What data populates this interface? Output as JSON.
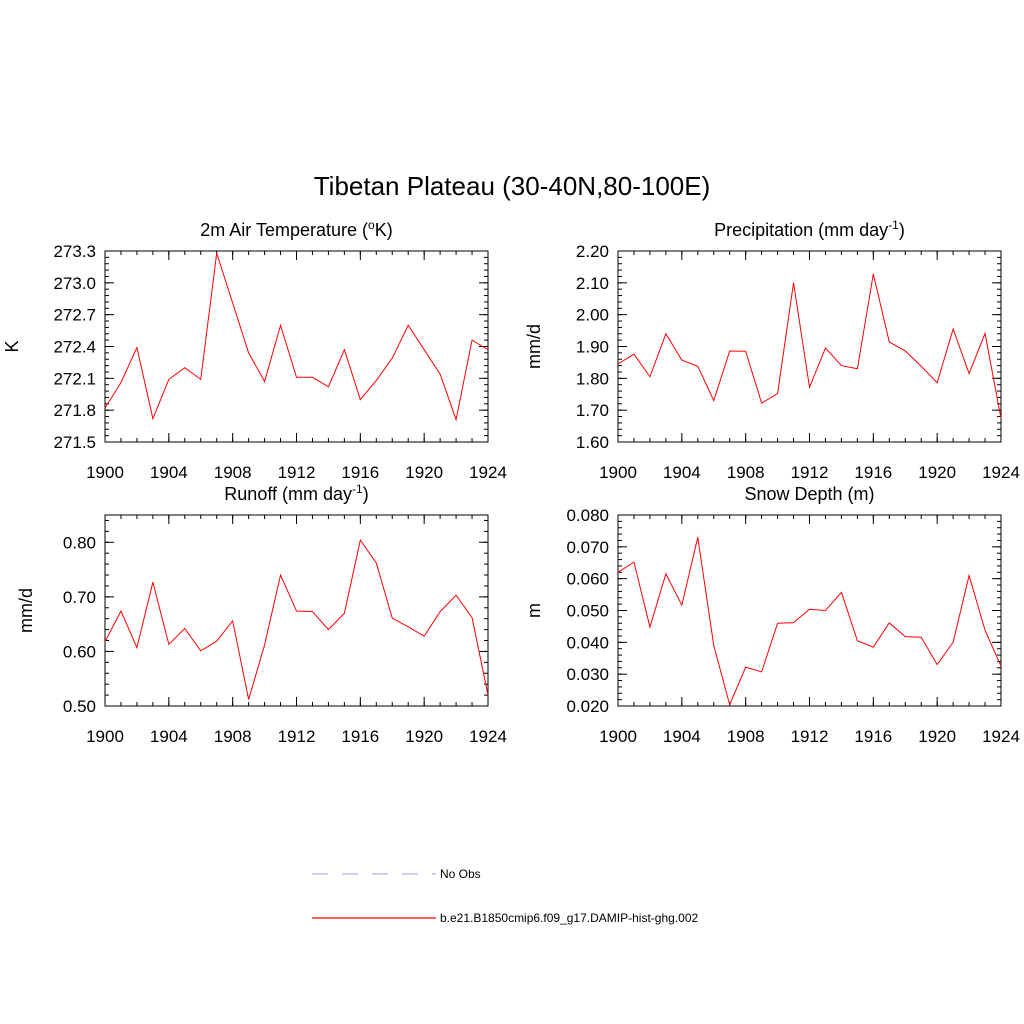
{
  "figure": {
    "title": "Tibetan Plateau (30-40N,80-100E)"
  },
  "chart_data": [
    {
      "type": "line",
      "title": "2m Air Temperature (",
      "title_sup": "o",
      "title_end": "K)",
      "xlabel": "",
      "ylabel": "K",
      "xlim": [
        1900,
        1924
      ],
      "ylim": [
        271.5,
        273.3
      ],
      "xticks": [
        1900,
        1904,
        1908,
        1912,
        1916,
        1920,
        1924
      ],
      "xtick_labels": [
        "1900",
        "1904",
        "1908",
        "1912",
        "1916",
        "1920",
        "1924"
      ],
      "yticks": [
        271.5,
        271.8,
        272.1,
        272.4,
        272.7,
        273.0,
        273.3
      ],
      "ytick_labels": [
        "271.5",
        "271.8",
        "272.1",
        "272.4",
        "272.7",
        "273.0",
        "273.3"
      ],
      "x": [
        1900,
        1901,
        1902,
        1903,
        1904,
        1905,
        1906,
        1907,
        1908,
        1909,
        1910,
        1911,
        1912,
        1913,
        1914,
        1915,
        1916,
        1917,
        1918,
        1919,
        1920,
        1921,
        1922,
        1923,
        1924
      ],
      "series": [
        {
          "name": "b.e21.B1850cmip6.f09_g17.DAMIP-hist-ghg.002",
          "color": "#ff0000",
          "values": [
            271.82,
            272.06,
            272.39,
            271.72,
            272.09,
            272.2,
            272.09,
            273.28,
            272.81,
            272.34,
            272.07,
            272.6,
            272.11,
            272.11,
            272.02,
            272.37,
            271.9,
            272.08,
            272.29,
            272.6,
            272.37,
            272.14,
            271.71,
            272.46,
            272.37
          ]
        }
      ]
    },
    {
      "type": "line",
      "title": "Precipitation (mm day",
      "title_sup": "-1",
      "title_end": ")",
      "xlabel": "",
      "ylabel": "mm/d",
      "xlim": [
        1900,
        1924
      ],
      "ylim": [
        1.6,
        2.2
      ],
      "xticks": [
        1900,
        1904,
        1908,
        1912,
        1916,
        1920,
        1924
      ],
      "xtick_labels": [
        "1900",
        "1904",
        "1908",
        "1912",
        "1916",
        "1920",
        "1924"
      ],
      "yticks": [
        1.6,
        1.7,
        1.8,
        1.9,
        2.0,
        2.1,
        2.2
      ],
      "ytick_labels": [
        "1.60",
        "1.70",
        "1.80",
        "1.90",
        "2.00",
        "2.10",
        "2.20"
      ],
      "x": [
        1900,
        1901,
        1902,
        1903,
        1904,
        1905,
        1906,
        1907,
        1908,
        1909,
        1910,
        1911,
        1912,
        1913,
        1914,
        1915,
        1916,
        1917,
        1918,
        1919,
        1920,
        1921,
        1922,
        1923,
        1924
      ],
      "series": [
        {
          "name": "b.e21.B1850cmip6.f09_g17.DAMIP-hist-ghg.002",
          "color": "#ff0000",
          "values": [
            1.845,
            1.876,
            1.805,
            1.94,
            1.857,
            1.838,
            1.73,
            1.886,
            1.885,
            1.722,
            1.752,
            2.1,
            1.772,
            1.895,
            1.84,
            1.83,
            2.128,
            1.914,
            1.886,
            1.838,
            1.786,
            1.955,
            1.815,
            1.941,
            1.674
          ]
        }
      ]
    },
    {
      "type": "line",
      "title": "Runoff (mm day",
      "title_sup": "-1",
      "title_end": ")",
      "xlabel": "",
      "ylabel": "mm/d",
      "xlim": [
        1900,
        1924
      ],
      "ylim": [
        0.5,
        0.85
      ],
      "xticks": [
        1900,
        1904,
        1908,
        1912,
        1916,
        1920,
        1924
      ],
      "xtick_labels": [
        "1900",
        "1904",
        "1908",
        "1912",
        "1916",
        "1920",
        "1924"
      ],
      "yticks": [
        0.5,
        0.6,
        0.7,
        0.8
      ],
      "ytick_labels": [
        "0.50",
        "0.60",
        "0.70",
        "0.80"
      ],
      "x": [
        1900,
        1901,
        1902,
        1903,
        1904,
        1905,
        1906,
        1907,
        1908,
        1909,
        1910,
        1911,
        1912,
        1913,
        1914,
        1915,
        1916,
        1917,
        1918,
        1919,
        1920,
        1921,
        1922,
        1923,
        1924
      ],
      "series": [
        {
          "name": "b.e21.B1850cmip6.f09_g17.DAMIP-hist-ghg.002",
          "color": "#ff0000",
          "values": [
            0.618,
            0.674,
            0.607,
            0.727,
            0.613,
            0.642,
            0.601,
            0.619,
            0.656,
            0.512,
            0.612,
            0.74,
            0.674,
            0.673,
            0.64,
            0.67,
            0.804,
            0.762,
            0.661,
            0.645,
            0.628,
            0.673,
            0.703,
            0.662,
            0.52
          ]
        }
      ]
    },
    {
      "type": "line",
      "title": "Snow Depth (m)",
      "title_sup": "",
      "title_end": "",
      "xlabel": "",
      "ylabel": "m",
      "xlim": [
        1900,
        1924
      ],
      "ylim": [
        0.02,
        0.08
      ],
      "xticks": [
        1900,
        1904,
        1908,
        1912,
        1916,
        1920,
        1924
      ],
      "xtick_labels": [
        "1900",
        "1904",
        "1908",
        "1912",
        "1916",
        "1920",
        "1924"
      ],
      "yticks": [
        0.02,
        0.03,
        0.04,
        0.05,
        0.06,
        0.07,
        0.08
      ],
      "ytick_labels": [
        "0.020",
        "0.030",
        "0.040",
        "0.050",
        "0.060",
        "0.070",
        "0.080"
      ],
      "x": [
        1900,
        1901,
        1902,
        1903,
        1904,
        1905,
        1906,
        1907,
        1908,
        1909,
        1910,
        1911,
        1912,
        1913,
        1914,
        1915,
        1916,
        1917,
        1918,
        1919,
        1920,
        1921,
        1922,
        1923,
        1924
      ],
      "series": [
        {
          "name": "b.e21.B1850cmip6.f09_g17.DAMIP-hist-ghg.002",
          "color": "#ff0000",
          "values": [
            0.062,
            0.0652,
            0.0448,
            0.0615,
            0.0517,
            0.073,
            0.039,
            0.0204,
            0.0322,
            0.0307,
            0.046,
            0.0462,
            0.0504,
            0.05,
            0.0557,
            0.0405,
            0.0385,
            0.0461,
            0.0418,
            0.0416,
            0.033,
            0.04,
            0.061,
            0.0438,
            0.0325
          ]
        }
      ]
    }
  ],
  "legend": {
    "items": [
      {
        "label": "No Obs",
        "color": "#b0b0ff",
        "style": "dashed"
      },
      {
        "label": "b.e21.B1850cmip6.f09_g17.DAMIP-hist-ghg.002",
        "color": "#ff0000",
        "style": "solid"
      }
    ]
  }
}
